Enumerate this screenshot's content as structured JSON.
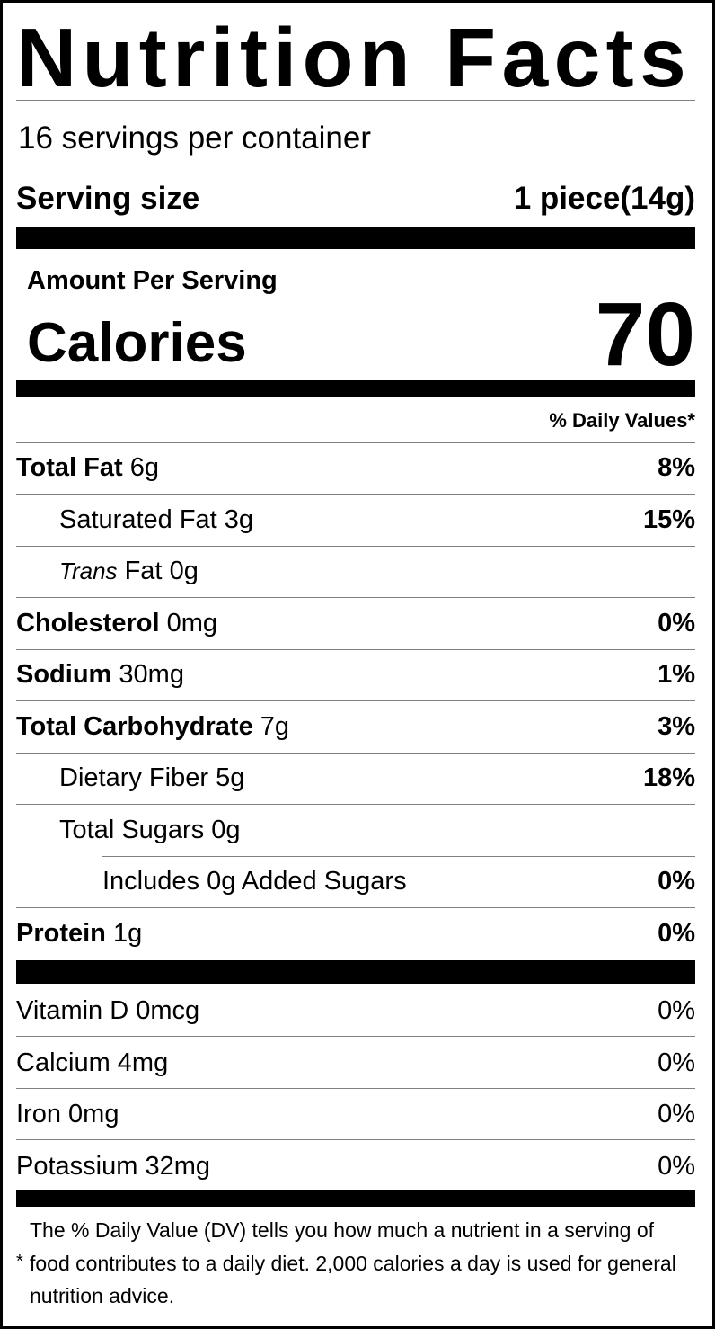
{
  "title": "Nutrition Facts",
  "servings_per_container": "16 servings per container",
  "serving_size": {
    "label": "Serving size",
    "value": "1 piece(14g)"
  },
  "amount_per_serving": "Amount Per Serving",
  "calories": {
    "label": "Calories",
    "value": "70"
  },
  "dv_header": "% Daily Values*",
  "nutrients": [
    {
      "name": "Total Fat",
      "amount": "6g",
      "dv": "8%"
    },
    {
      "name": "Saturated Fat",
      "amount": "3g",
      "dv": "15%"
    },
    {
      "name_italic": "Trans",
      "name": "Fat",
      "amount": "0g",
      "dv": ""
    },
    {
      "name": "Cholesterol",
      "amount": "0mg",
      "dv": "0%"
    },
    {
      "name": "Sodium",
      "amount": "30mg",
      "dv": "1%"
    },
    {
      "name": "Total Carbohydrate",
      "amount": "7g",
      "dv": "3%"
    },
    {
      "name": "Dietary Fiber",
      "amount": "5g",
      "dv": "18%"
    },
    {
      "name": "Total Sugars",
      "amount": "0g",
      "dv": ""
    },
    {
      "name": "Includes 0g Added Sugars",
      "amount": "",
      "dv": "0%"
    },
    {
      "name": "Protein",
      "amount": "1g",
      "dv": "0%"
    }
  ],
  "vitamins": [
    {
      "label": "Vitamin D 0mcg",
      "dv": "0%"
    },
    {
      "label": "Calcium 4mg",
      "dv": "0%"
    },
    {
      "label": "Iron 0mg",
      "dv": "0%"
    },
    {
      "label": "Potassium 32mg",
      "dv": "0%"
    }
  ],
  "footnote": {
    "asterisk": "*",
    "text": "The % Daily Value (DV) tells you how much a nutrient in a serving of food contributes to a daily diet. 2,000 calories a day is used for general nutrition advice."
  }
}
